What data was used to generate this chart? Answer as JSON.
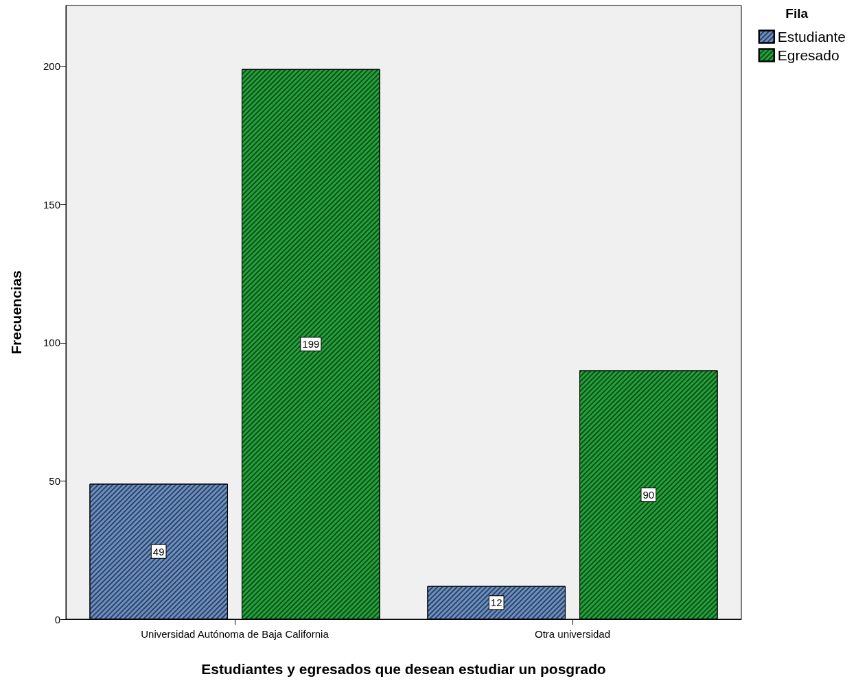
{
  "chart_data": {
    "type": "bar",
    "xlabel": "Estudiantes y egresados que desean estudiar un posgrado",
    "ylabel": "Frecuencias",
    "legend_title": "Fila",
    "categories": [
      "Universidad Autónoma de Baja California",
      "Otra universidad"
    ],
    "series": [
      {
        "name": "Estudiante",
        "color": "#6a90c8",
        "values": [
          49,
          12
        ]
      },
      {
        "name": "Egresado",
        "color": "#22a33a",
        "values": [
          199,
          90
        ]
      }
    ],
    "ylim": [
      0,
      222
    ],
    "yticks": [
      0,
      50,
      100,
      150,
      200
    ],
    "grid": false,
    "legend": "top right",
    "data_labels": true
  }
}
